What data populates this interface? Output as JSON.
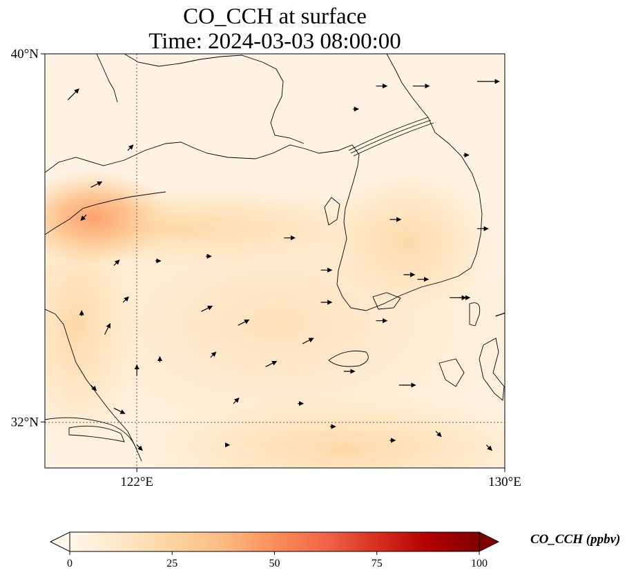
{
  "title": {
    "line1": "CO_CCH at surface",
    "line2": "Time: 2024-03-03 08:00:00"
  },
  "axes": {
    "lon_ticks": [
      {
        "value": 122,
        "label": "122°E"
      },
      {
        "value": 130,
        "label": "130°E"
      }
    ],
    "lat_ticks": [
      {
        "value": 40,
        "label": "40°N"
      },
      {
        "value": 32,
        "label": "32°N"
      }
    ],
    "lon_range": [
      120,
      130
    ],
    "lat_range": [
      31,
      40
    ],
    "gridlines": "dotted at 122°E and 32°N"
  },
  "colorbar": {
    "label": "CO_CCH (ppbv)",
    "ticks": [
      0,
      25,
      50,
      75,
      100
    ],
    "range": [
      0,
      100
    ],
    "colormap": "OrRd",
    "extend": "both",
    "colors": [
      "#fff7ec",
      "#fee8c8",
      "#fdd49e",
      "#fdbb84",
      "#fc8d59",
      "#ef6548",
      "#d7301f",
      "#b30000",
      "#7f0000"
    ]
  },
  "chart_data": {
    "type": "heatmap",
    "variable": "CO_CCH",
    "units": "ppbv",
    "concentration_field": [
      {
        "lon": 121.0,
        "lat": 36.6,
        "value": 38
      },
      {
        "lon": 120.4,
        "lat": 36.2,
        "value": 32
      },
      {
        "lon": 120.6,
        "lat": 34.8,
        "value": 18
      },
      {
        "lon": 121.0,
        "lat": 33.4,
        "value": 16
      },
      {
        "lon": 121.4,
        "lat": 31.8,
        "value": 15
      },
      {
        "lon": 127.3,
        "lat": 35.5,
        "value": 17
      },
      {
        "lon": 126.5,
        "lat": 36.4,
        "value": 12
      },
      {
        "lon": 124.5,
        "lat": 36.0,
        "value": 8
      },
      {
        "lon": 125.0,
        "lat": 31.8,
        "value": 10
      },
      {
        "lon": 128.0,
        "lat": 31.8,
        "value": 9
      },
      {
        "lon": 129.5,
        "lat": 36.2,
        "value": 7
      },
      {
        "lon": 125.0,
        "lat": 39.0,
        "value": 2
      }
    ],
    "wind_vectors": [
      {
        "lon": 120.5,
        "lat": 39.0,
        "u": 2,
        "v": 2
      },
      {
        "lon": 121.8,
        "lat": 37.9,
        "u": 1,
        "v": 1
      },
      {
        "lon": 121.0,
        "lat": 37.1,
        "u": 2,
        "v": 1
      },
      {
        "lon": 120.9,
        "lat": 36.5,
        "u": -1,
        "v": -1
      },
      {
        "lon": 121.5,
        "lat": 35.4,
        "u": 1,
        "v": 1
      },
      {
        "lon": 121.7,
        "lat": 34.6,
        "u": 1,
        "v": 1
      },
      {
        "lon": 120.8,
        "lat": 34.3,
        "u": 0,
        "v": 1
      },
      {
        "lon": 121.3,
        "lat": 33.9,
        "u": 1,
        "v": 2
      },
      {
        "lon": 122.0,
        "lat": 33.0,
        "u": 0,
        "v": 2
      },
      {
        "lon": 121.0,
        "lat": 32.8,
        "u": 1,
        "v": -1
      },
      {
        "lon": 121.5,
        "lat": 32.3,
        "u": 2,
        "v": -1
      },
      {
        "lon": 122.5,
        "lat": 33.3,
        "u": 0,
        "v": 1
      },
      {
        "lon": 123.4,
        "lat": 34.4,
        "u": 2,
        "v": 1
      },
      {
        "lon": 123.6,
        "lat": 33.4,
        "u": 1,
        "v": 1
      },
      {
        "lon": 124.1,
        "lat": 32.4,
        "u": 1,
        "v": 1
      },
      {
        "lon": 124.2,
        "lat": 34.1,
        "u": 2,
        "v": 1
      },
      {
        "lon": 122.4,
        "lat": 35.5,
        "u": 1,
        "v": 0
      },
      {
        "lon": 123.5,
        "lat": 35.6,
        "u": 1,
        "v": 0
      },
      {
        "lon": 124.8,
        "lat": 33.2,
        "u": 2,
        "v": 1
      },
      {
        "lon": 125.6,
        "lat": 33.7,
        "u": 2,
        "v": 1
      },
      {
        "lon": 126.0,
        "lat": 34.6,
        "u": 2,
        "v": 0
      },
      {
        "lon": 126.0,
        "lat": 35.3,
        "u": 2,
        "v": 0
      },
      {
        "lon": 127.8,
        "lat": 35.2,
        "u": 2,
        "v": 0
      },
      {
        "lon": 128.1,
        "lat": 35.1,
        "u": 2,
        "v": 0
      },
      {
        "lon": 127.2,
        "lat": 34.2,
        "u": 2,
        "v": 0
      },
      {
        "lon": 128.8,
        "lat": 34.7,
        "u": 3,
        "v": 0
      },
      {
        "lon": 129.8,
        "lat": 34.3,
        "u": 3,
        "v": 1
      },
      {
        "lon": 126.5,
        "lat": 33.1,
        "u": 2,
        "v": 0
      },
      {
        "lon": 127.7,
        "lat": 32.8,
        "u": 3,
        "v": 0
      },
      {
        "lon": 128.0,
        "lat": 39.3,
        "u": 3,
        "v": 0
      },
      {
        "lon": 129.4,
        "lat": 39.4,
        "u": 4,
        "v": 0
      },
      {
        "lon": 127.2,
        "lat": 39.3,
        "u": 2,
        "v": 0
      },
      {
        "lon": 126.7,
        "lat": 38.8,
        "u": 1,
        "v": 0
      },
      {
        "lon": 129.1,
        "lat": 37.8,
        "u": 1,
        "v": 0
      },
      {
        "lon": 129.4,
        "lat": 36.2,
        "u": 2,
        "v": 0
      },
      {
        "lon": 129.0,
        "lat": 34.7,
        "u": 2,
        "v": 0
      },
      {
        "lon": 127.5,
        "lat": 36.4,
        "u": 2,
        "v": 0
      },
      {
        "lon": 125.2,
        "lat": 36.0,
        "u": 2,
        "v": 0
      },
      {
        "lon": 129.6,
        "lat": 31.5,
        "u": 1,
        "v": -1
      },
      {
        "lon": 128.5,
        "lat": 31.8,
        "u": 1,
        "v": -1
      },
      {
        "lon": 127.5,
        "lat": 31.6,
        "u": 1,
        "v": 0
      },
      {
        "lon": 126.2,
        "lat": 31.9,
        "u": 1,
        "v": 0
      },
      {
        "lon": 125.5,
        "lat": 32.4,
        "u": 1,
        "v": 0
      },
      {
        "lon": 124.0,
        "lat": 31.5,
        "u": 0,
        "v": 0
      },
      {
        "lon": 122.0,
        "lat": 31.5,
        "u": 1,
        "v": -1
      }
    ]
  }
}
